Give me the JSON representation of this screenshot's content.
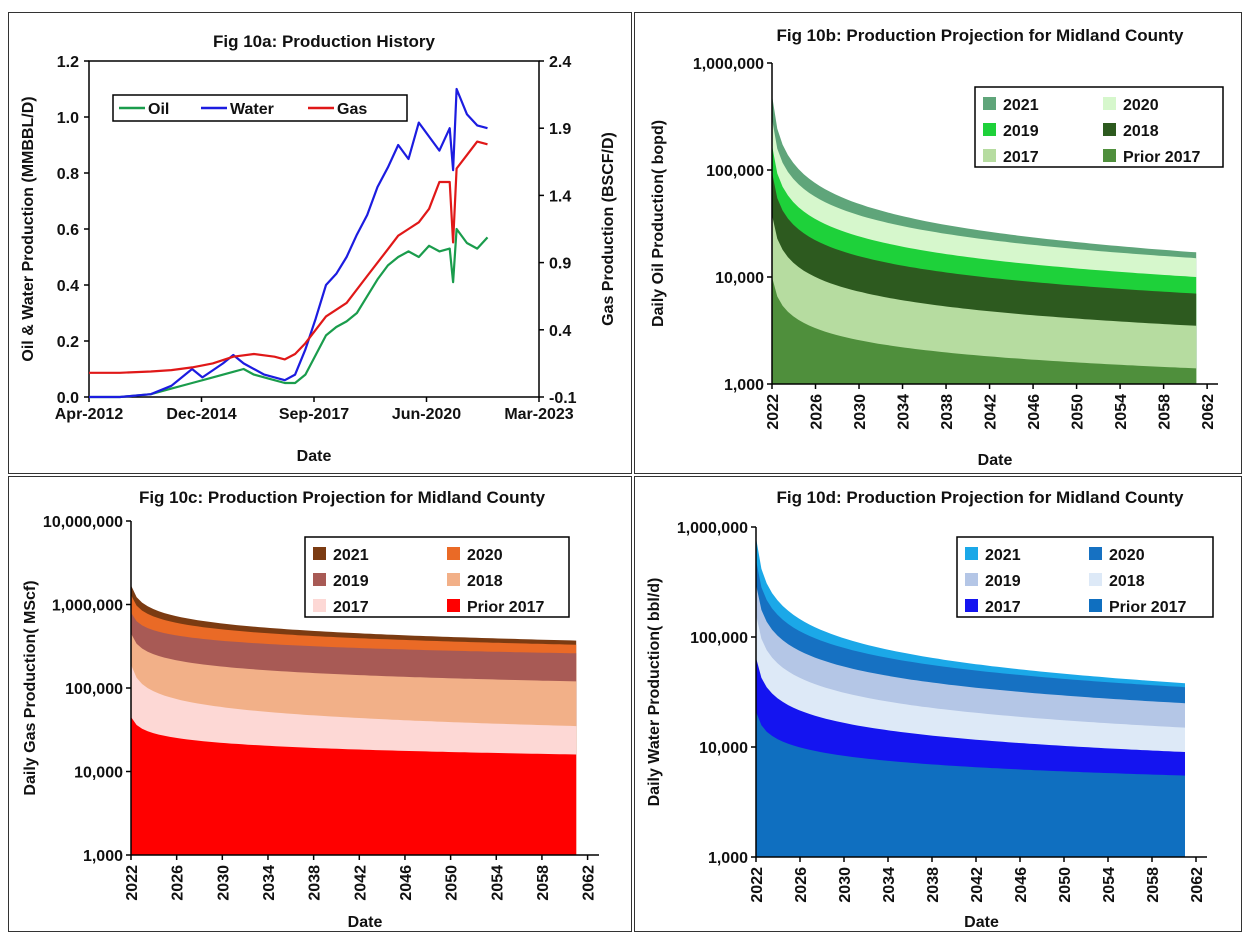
{
  "chart_data": [
    {
      "type": "line",
      "title": "Fig 10a: Production History",
      "xlabel": "Date",
      "ylabel": "Oil & Water  Production (MMBBL/D)",
      "y2label": "Gas Production (BSCF/D)",
      "x_tick_labels": [
        "Apr-2012",
        "Dec-2014",
        "Sep-2017",
        "Jun-2020",
        "Mar-2023"
      ],
      "x_range": [
        "2012-04",
        "2023-03"
      ],
      "ylim": [
        0.0,
        1.2
      ],
      "yticks": [
        "0.0",
        "0.2",
        "0.4",
        "0.6",
        "0.8",
        "1.0",
        "1.2"
      ],
      "y2lim": [
        -0.1,
        2.4
      ],
      "y2ticks": [
        "-0.1",
        "0.4",
        "0.9",
        "1.4",
        "1.9",
        "2.4"
      ],
      "legend_position": "top-left",
      "grid": false,
      "series": [
        {
          "name": "Oil",
          "axis": "left",
          "color": "#1a9c4c",
          "points": [
            [
              "2012-04",
              0.0
            ],
            [
              "2013-01",
              0.0
            ],
            [
              "2013-10",
              0.01
            ],
            [
              "2014-04",
              0.03
            ],
            [
              "2014-10",
              0.05
            ],
            [
              "2015-04",
              0.07
            ],
            [
              "2015-10",
              0.09
            ],
            [
              "2016-01",
              0.1
            ],
            [
              "2016-04",
              0.08
            ],
            [
              "2016-10",
              0.06
            ],
            [
              "2017-01",
              0.05
            ],
            [
              "2017-04",
              0.05
            ],
            [
              "2017-07",
              0.08
            ],
            [
              "2017-10",
              0.15
            ],
            [
              "2018-01",
              0.22
            ],
            [
              "2018-04",
              0.25
            ],
            [
              "2018-07",
              0.27
            ],
            [
              "2018-10",
              0.3
            ],
            [
              "2019-01",
              0.36
            ],
            [
              "2019-04",
              0.42
            ],
            [
              "2019-07",
              0.47
            ],
            [
              "2019-10",
              0.5
            ],
            [
              "2020-01",
              0.52
            ],
            [
              "2020-04",
              0.5
            ],
            [
              "2020-07",
              0.54
            ],
            [
              "2020-10",
              0.52
            ],
            [
              "2021-01",
              0.53
            ],
            [
              "2021-02",
              0.41
            ],
            [
              "2021-03",
              0.6
            ],
            [
              "2021-06",
              0.55
            ],
            [
              "2021-09",
              0.53
            ],
            [
              "2021-12",
              0.57
            ]
          ]
        },
        {
          "name": "Water",
          "axis": "left",
          "color": "#1c1ce0",
          "points": [
            [
              "2012-04",
              0.0
            ],
            [
              "2013-01",
              0.0
            ],
            [
              "2013-10",
              0.01
            ],
            [
              "2014-04",
              0.04
            ],
            [
              "2014-10",
              0.1
            ],
            [
              "2015-01",
              0.07
            ],
            [
              "2015-07",
              0.12
            ],
            [
              "2015-10",
              0.15
            ],
            [
              "2016-01",
              0.12
            ],
            [
              "2016-07",
              0.08
            ],
            [
              "2017-01",
              0.06
            ],
            [
              "2017-04",
              0.08
            ],
            [
              "2017-07",
              0.17
            ],
            [
              "2017-10",
              0.28
            ],
            [
              "2018-01",
              0.4
            ],
            [
              "2018-04",
              0.44
            ],
            [
              "2018-07",
              0.5
            ],
            [
              "2018-10",
              0.58
            ],
            [
              "2019-01",
              0.65
            ],
            [
              "2019-04",
              0.75
            ],
            [
              "2019-07",
              0.82
            ],
            [
              "2019-10",
              0.9
            ],
            [
              "2020-01",
              0.85
            ],
            [
              "2020-04",
              0.98
            ],
            [
              "2020-07",
              0.93
            ],
            [
              "2020-10",
              0.88
            ],
            [
              "2021-01",
              0.96
            ],
            [
              "2021-02",
              0.81
            ],
            [
              "2021-03",
              1.1
            ],
            [
              "2021-06",
              1.01
            ],
            [
              "2021-09",
              0.97
            ],
            [
              "2021-12",
              0.96
            ]
          ]
        },
        {
          "name": "Gas",
          "axis": "right",
          "color": "#e01818",
          "points": [
            [
              "2012-04",
              0.08
            ],
            [
              "2013-01",
              0.08
            ],
            [
              "2013-10",
              0.09
            ],
            [
              "2014-04",
              0.1
            ],
            [
              "2014-10",
              0.12
            ],
            [
              "2015-04",
              0.15
            ],
            [
              "2015-10",
              0.2
            ],
            [
              "2016-04",
              0.22
            ],
            [
              "2016-10",
              0.2
            ],
            [
              "2017-01",
              0.18
            ],
            [
              "2017-04",
              0.22
            ],
            [
              "2017-07",
              0.3
            ],
            [
              "2017-10",
              0.4
            ],
            [
              "2018-01",
              0.5
            ],
            [
              "2018-07",
              0.6
            ],
            [
              "2019-01",
              0.8
            ],
            [
              "2019-07",
              1.0
            ],
            [
              "2019-10",
              1.1
            ],
            [
              "2020-01",
              1.15
            ],
            [
              "2020-04",
              1.2
            ],
            [
              "2020-07",
              1.3
            ],
            [
              "2020-10",
              1.5
            ],
            [
              "2021-01",
              1.5
            ],
            [
              "2021-02",
              1.05
            ],
            [
              "2021-03",
              1.6
            ],
            [
              "2021-06",
              1.7
            ],
            [
              "2021-09",
              1.8
            ],
            [
              "2021-12",
              1.78
            ]
          ]
        }
      ]
    },
    {
      "type": "area",
      "stacked": true,
      "log_scale": true,
      "title": "Fig 10b: Production Projection for Midland County",
      "xlabel": "Date",
      "ylabel": "Daily  Oil Production( bopd)",
      "xlim": [
        2022,
        2063
      ],
      "x_tick_labels": [
        "2022",
        "2026",
        "2030",
        "2034",
        "2038",
        "2042",
        "2046",
        "2050",
        "2054",
        "2058",
        "2062"
      ],
      "ylim": [
        1000,
        1000000
      ],
      "y_tick_labels": [
        "1,000",
        "10,000",
        "100,000",
        "1,000,000"
      ],
      "data_x_range": [
        2022,
        2061
      ],
      "legend_position": "top-right",
      "legend_columns": 2,
      "series": [
        {
          "name": "2021",
          "color": "#5fa57a",
          "start_top": 500000,
          "end_top": 17000
        },
        {
          "name": "2020",
          "color": "#d6f7cc",
          "start_top": 300000,
          "end_top": 15000
        },
        {
          "name": "2019",
          "color": "#1ed13a",
          "start_top": 170000,
          "end_top": 10000
        },
        {
          "name": "2018",
          "color": "#2d5a1f",
          "start_top": 95000,
          "end_top": 7000
        },
        {
          "name": "2017",
          "color": "#b6dca0",
          "start_top": 38000,
          "end_top": 3500
        },
        {
          "name": "Prior 2017",
          "color": "#4f8f3c",
          "start_top": 10000,
          "end_top": 1400
        }
      ],
      "legend_order": [
        "2021",
        "2020",
        "2019",
        "2018",
        "2017",
        "Prior 2017"
      ]
    },
    {
      "type": "area",
      "stacked": true,
      "log_scale": true,
      "title": "Fig 10c: Production Projection for Midland County",
      "xlabel": "Date",
      "ylabel": "Daily Gas Production( MScf)",
      "xlim": [
        2022,
        2063
      ],
      "x_tick_labels": [
        "2022",
        "2026",
        "2030",
        "2034",
        "2038",
        "2042",
        "2046",
        "2050",
        "2054",
        "2058",
        "2062"
      ],
      "ylim": [
        1000,
        10000000
      ],
      "y_tick_labels": [
        "1,000",
        "10,000",
        "100,000",
        "1,000,000",
        "10,000,000"
      ],
      "data_x_range": [
        2022,
        2061
      ],
      "legend_position": "top-right",
      "legend_columns": 2,
      "series": [
        {
          "name": "2021",
          "color": "#7b3b12",
          "start_top": 1700000,
          "end_top": 370000
        },
        {
          "name": "2020",
          "color": "#ea6a26",
          "start_top": 1300000,
          "end_top": 330000
        },
        {
          "name": "2019",
          "color": "#a85a55",
          "start_top": 800000,
          "end_top": 260000
        },
        {
          "name": "2018",
          "color": "#f2b088",
          "start_top": 450000,
          "end_top": 120000
        },
        {
          "name": "2017",
          "color": "#fdd8d5",
          "start_top": 190000,
          "end_top": 35000
        },
        {
          "name": "Prior 2017",
          "color": "#ff0000",
          "start_top": 45000,
          "end_top": 16000
        }
      ],
      "legend_order": [
        "2021",
        "2020",
        "2019",
        "2018",
        "2017",
        "Prior 2017"
      ]
    },
    {
      "type": "area",
      "stacked": true,
      "log_scale": true,
      "title": "Fig 10d: Production Projection for Midland County",
      "xlabel": "Date",
      "ylabel": "Daily  Water Production( bbl/d)",
      "xlim": [
        2022,
        2063
      ],
      "x_tick_labels": [
        "2022",
        "2026",
        "2030",
        "2034",
        "2038",
        "2042",
        "2046",
        "2050",
        "2054",
        "2058",
        "2062"
      ],
      "ylim": [
        1000,
        1000000
      ],
      "y_tick_labels": [
        "1,000",
        "10,000",
        "100,000",
        "1,000,000"
      ],
      "data_x_range": [
        2022,
        2061
      ],
      "legend_position": "top-right",
      "legend_columns": 2,
      "series": [
        {
          "name": "2021",
          "color": "#1ba8e8",
          "start_top": 800000,
          "end_top": 38000
        },
        {
          "name": "2020",
          "color": "#1671c2",
          "start_top": 500000,
          "end_top": 35000
        },
        {
          "name": "2019",
          "color": "#b4c6e6",
          "start_top": 300000,
          "end_top": 25000
        },
        {
          "name": "2018",
          "color": "#dde9f7",
          "start_top": 160000,
          "end_top": 15000
        },
        {
          "name": "2017",
          "color": "#1414f0",
          "start_top": 65000,
          "end_top": 9000
        },
        {
          "name": "Prior 2017",
          "color": "#0f6fc0",
          "start_top": 21000,
          "end_top": 5500
        }
      ],
      "legend_order": [
        "2021",
        "2020",
        "2019",
        "2018",
        "2017",
        "Prior 2017"
      ]
    }
  ]
}
